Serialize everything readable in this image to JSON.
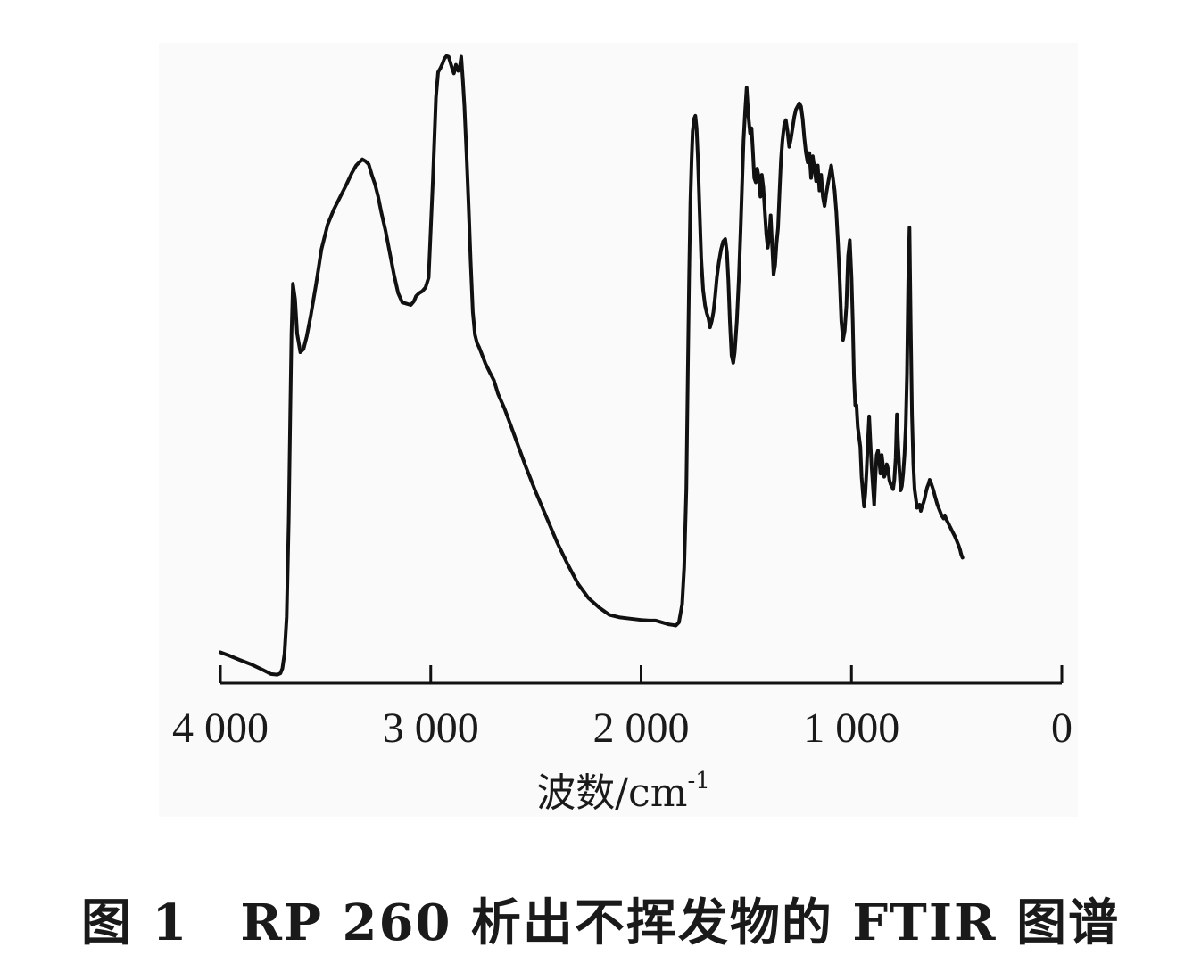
{
  "caption": "图 1　RP 260 析出不挥发物的 FTIR 图谱",
  "chart_data": {
    "type": "line",
    "title": "",
    "xlabel": "波数/cm",
    "xlabel_superscript": "-1",
    "ylabel": "",
    "xlim": [
      4000,
      0
    ],
    "x_reversed": true,
    "y_axis_shown": false,
    "grid": false,
    "legend": "none",
    "line_color": "#111111",
    "x_ticks": [
      {
        "value": 4000,
        "label": "4 000"
      },
      {
        "value": 3000,
        "label": "3 000"
      },
      {
        "value": 2000,
        "label": "2 000"
      },
      {
        "value": 1000,
        "label": "1 000"
      },
      {
        "value": 0,
        "label": "0"
      }
    ],
    "ylim": [
      0,
      100
    ],
    "series": [
      {
        "x": [
          4000,
          3960,
          3910,
          3850,
          3800,
          3760,
          3730,
          3715,
          3705,
          3695,
          3685,
          3675,
          3668,
          3662,
          3655,
          3645,
          3635,
          3620,
          3605,
          3590,
          3570,
          3545,
          3520,
          3490,
          3460,
          3430,
          3400,
          3375,
          3355,
          3340,
          3325,
          3310,
          3295,
          3280,
          3265,
          3250,
          3235,
          3215,
          3195,
          3175,
          3155,
          3135,
          3115,
          3095,
          3080,
          3070,
          3055,
          3040,
          3025,
          3010,
          2990,
          2975,
          2965,
          2955,
          2945,
          2935,
          2925,
          2915,
          2905,
          2898,
          2890,
          2880,
          2870,
          2862,
          2855,
          2848,
          2840,
          2830,
          2820,
          2810,
          2800,
          2790,
          2780,
          2770,
          2755,
          2740,
          2720,
          2700,
          2680,
          2650,
          2620,
          2590,
          2550,
          2500,
          2450,
          2400,
          2350,
          2300,
          2250,
          2200,
          2150,
          2100,
          2050,
          2000,
          1960,
          1930,
          1910,
          1890,
          1870,
          1850,
          1835,
          1820,
          1805,
          1795,
          1785,
          1778,
          1772,
          1766,
          1760,
          1755,
          1748,
          1742,
          1736,
          1730,
          1722,
          1714,
          1705,
          1696,
          1688,
          1680,
          1672,
          1664,
          1656,
          1648,
          1640,
          1630,
          1620,
          1610,
          1600,
          1592,
          1585,
          1578,
          1570,
          1562,
          1555,
          1545,
          1535,
          1527,
          1520,
          1513,
          1505,
          1498,
          1490,
          1482,
          1475,
          1468,
          1462,
          1455,
          1448,
          1440,
          1433,
          1426,
          1419,
          1412,
          1405,
          1398,
          1391,
          1384,
          1377,
          1370,
          1363,
          1356,
          1349,
          1342,
          1335,
          1328,
          1320,
          1312,
          1304,
          1296,
          1288,
          1280,
          1272,
          1264,
          1256,
          1248,
          1240,
          1232,
          1224,
          1216,
          1208,
          1200,
          1192,
          1184,
          1176,
          1168,
          1160,
          1152,
          1144,
          1136,
          1128,
          1120,
          1112,
          1104,
          1096,
          1088,
          1080,
          1072,
          1064,
          1056,
          1048,
          1040,
          1032,
          1024,
          1016,
          1008,
          1000,
          994,
          988,
          982,
          976,
          970,
          964,
          958,
          952,
          946,
          940,
          934,
          928,
          922,
          916,
          910,
          904,
          898,
          892,
          886,
          880,
          874,
          868,
          862,
          856,
          850,
          844,
          838,
          832,
          826,
          820,
          814,
          808,
          802,
          796,
          790,
          784,
          778,
          772,
          766,
          760,
          754,
          748,
          742,
          736,
          730,
          724,
          718,
          712,
          706,
          700,
          694,
          688,
          682,
          676,
          670,
          664,
          658,
          652,
          646,
          640,
          634,
          628,
          622,
          616,
          610,
          604,
          598,
          592,
          586,
          580,
          574,
          568,
          562,
          556,
          550,
          544,
          538,
          532,
          526,
          520,
          514,
          508,
          502,
          496,
          490,
          484,
          478,
          472
        ],
        "y": [
          3.8,
          3.3,
          2.6,
          1.8,
          1.0,
          0.3,
          0.2,
          0.4,
          1.2,
          3.6,
          9.5,
          25.0,
          42.0,
          55.0,
          63.0,
          60.5,
          55.0,
          52.0,
          52.5,
          54.5,
          58.0,
          63.0,
          68.5,
          72.5,
          75.0,
          77.0,
          79.0,
          80.8,
          82.0,
          82.5,
          83.0,
          82.7,
          82.2,
          80.5,
          79.0,
          77.0,
          74.5,
          71.5,
          68.0,
          64.5,
          61.5,
          60.0,
          59.8,
          59.6,
          60.2,
          61.0,
          61.5,
          61.8,
          62.4,
          64.0,
          79.5,
          93.0,
          97.0,
          97.6,
          98.3,
          99.2,
          99.6,
          99.5,
          98.4,
          97.6,
          96.8,
          98.2,
          97.2,
          97.8,
          99.5,
          96.0,
          91.5,
          84.0,
          75.5,
          66.5,
          58.5,
          54.8,
          53.5,
          52.8,
          51.5,
          50.2,
          48.8,
          47.5,
          45.3,
          43.0,
          40.3,
          37.5,
          33.8,
          29.5,
          25.5,
          21.5,
          18.0,
          14.8,
          12.5,
          11.0,
          9.8,
          9.4,
          9.2,
          9.0,
          8.9,
          8.9,
          8.7,
          8.5,
          8.3,
          8.2,
          8.1,
          8.6,
          11.5,
          17.5,
          30.0,
          48.0,
          64.0,
          76.0,
          83.0,
          87.5,
          89.5,
          90.0,
          88.0,
          83.0,
          75.0,
          67.0,
          62.0,
          59.5,
          58.3,
          57.5,
          56.0,
          57.0,
          58.5,
          61.0,
          64.0,
          66.5,
          68.5,
          69.8,
          70.2,
          68.0,
          63.5,
          57.0,
          51.5,
          50.3,
          52.0,
          57.0,
          64.0,
          71.5,
          79.0,
          86.0,
          91.0,
          94.5,
          90.0,
          87.2,
          88.0,
          84.0,
          80.0,
          79.3,
          81.5,
          80.0,
          77.0,
          80.5,
          78.5,
          74.8,
          71.0,
          68.8,
          70.5,
          74.0,
          69.0,
          64.5,
          66.0,
          69.5,
          72.0,
          77.5,
          83.0,
          86.0,
          88.5,
          89.3,
          87.5,
          85.0,
          86.3,
          88.0,
          89.8,
          91.0,
          91.5,
          92.0,
          91.5,
          89.5,
          86.5,
          84.0,
          82.5,
          84.0,
          80.0,
          83.5,
          81.5,
          79.5,
          82.0,
          78.0,
          80.5,
          77.0,
          75.5,
          77.5,
          79.0,
          80.5,
          82.0,
          80.0,
          78.0,
          74.5,
          69.5,
          64.0,
          57.0,
          54.0,
          55.5,
          59.5,
          67.5,
          70.0,
          64.0,
          57.0,
          48.0,
          43.5,
          43.5,
          40.0,
          38.5,
          36.8,
          32.0,
          29.5,
          27.2,
          29.3,
          33.0,
          37.5,
          41.7,
          37.5,
          33.5,
          30.5,
          27.5,
          32.0,
          35.5,
          36.2,
          34.5,
          32.5,
          35.5,
          33.8,
          32.0,
          32.5,
          34.0,
          33.2,
          31.5,
          30.8,
          30.5,
          30.0,
          31.5,
          35.0,
          42.0,
          37.0,
          33.0,
          29.8,
          30.5,
          32.5,
          35.5,
          40.0,
          48.5,
          63.5,
          72.0,
          56.0,
          42.0,
          34.0,
          30.0,
          28.5,
          27.0,
          27.2,
          27.5,
          26.5,
          27.3,
          27.8,
          28.5,
          29.5,
          30.3,
          30.8,
          31.5,
          31.0,
          30.4,
          29.8,
          29.0,
          28.3,
          27.6,
          27.0,
          26.5,
          26.0,
          25.6,
          25.3,
          25.8,
          25.2,
          24.8,
          24.4,
          24.0,
          23.6,
          23.2,
          22.8,
          22.4,
          21.9,
          21.4,
          20.9,
          20.3,
          19.5,
          19.0
        ]
      }
    ]
  }
}
